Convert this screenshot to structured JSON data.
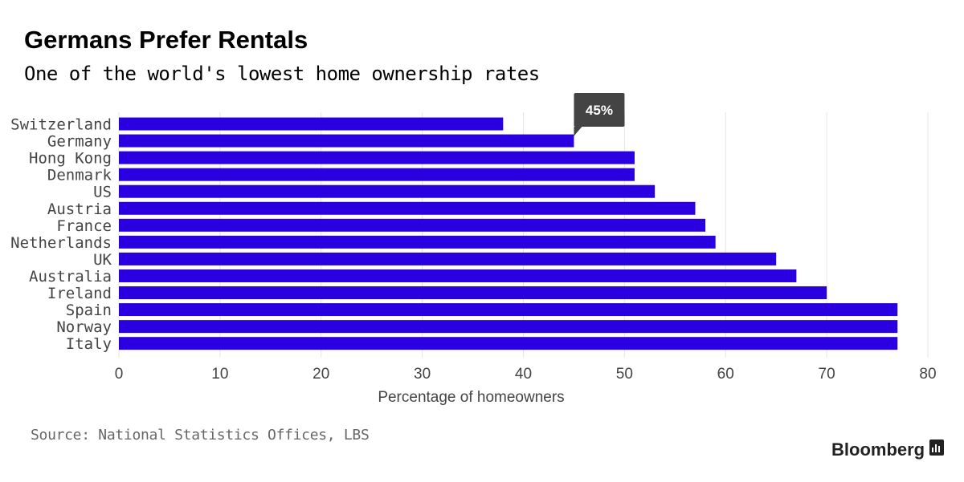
{
  "header": {
    "title": "Germans Prefer Rentals",
    "subtitle": "One of the world's lowest home ownership rates"
  },
  "footer": {
    "source": "Source: National Statistics Offices, LBS",
    "brand": "Bloomberg"
  },
  "colors": {
    "bar": "#2a00e0",
    "grid": "#e6e6e6",
    "tooltip_bg": "#444444"
  },
  "icons": {
    "brand_icon": "bloomberg-chart-icon"
  },
  "tooltip": {
    "label": "45%",
    "category": "Germany"
  },
  "chart_data": {
    "type": "bar",
    "orientation": "horizontal",
    "categories": [
      "Switzerland",
      "Germany",
      "Hong Kong",
      "Denmark",
      "US",
      "Austria",
      "France",
      "Netherlands",
      "UK",
      "Australia",
      "Ireland",
      "Spain",
      "Norway",
      "Italy"
    ],
    "values": [
      38,
      45,
      51,
      51,
      53,
      57,
      58,
      59,
      65,
      67,
      70,
      77,
      77,
      77
    ],
    "xlabel": "Percentage of homeowners",
    "ylabel": "",
    "xlim": [
      0,
      80
    ],
    "xticks": [
      0,
      10,
      20,
      30,
      40,
      50,
      60,
      70,
      80
    ],
    "grid": true
  }
}
